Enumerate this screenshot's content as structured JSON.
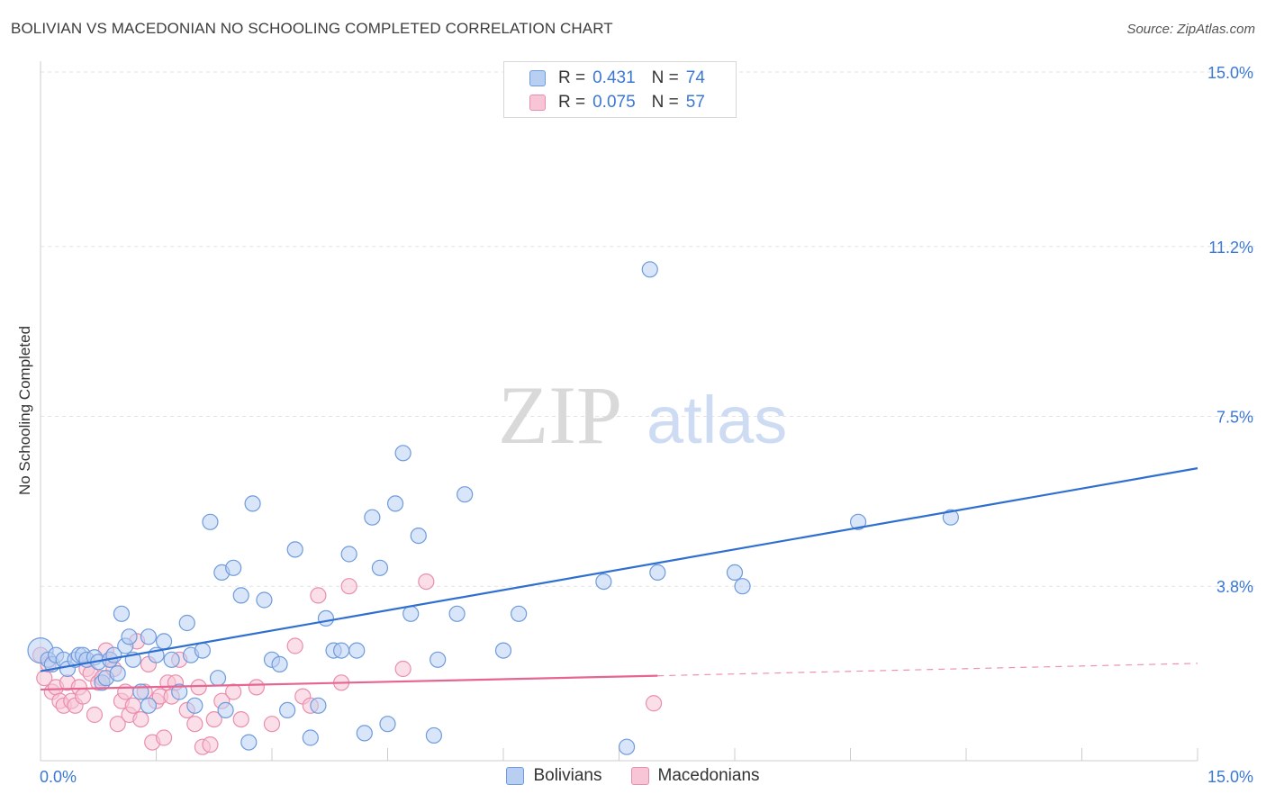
{
  "header": {
    "title": "BOLIVIAN VS MACEDONIAN NO SCHOOLING COMPLETED CORRELATION CHART",
    "source": "Source: ZipAtlas.com"
  },
  "colors": {
    "blue_fill": "#b9cff2",
    "blue_stroke": "#6f9bdc",
    "blue_line": "#2f6fd0",
    "pink_fill": "#f7c5d5",
    "pink_stroke": "#ea8eae",
    "pink_line": "#e66592",
    "axis_text": "#3a78d4",
    "grid": "#e3e3e3"
  },
  "legend": {
    "rows": [
      {
        "r_label": "R =",
        "r_value": "0.431",
        "n_label": "N =",
        "n_value": "74"
      },
      {
        "r_label": "R =",
        "r_value": "0.075",
        "n_label": "N =",
        "n_value": "57"
      }
    ]
  },
  "watermark": {
    "zip": "ZIP",
    "atlas": "atlas"
  },
  "chart_data": {
    "type": "scatter",
    "title": "BOLIVIAN VS MACEDONIAN NO SCHOOLING COMPLETED CORRELATION CHART",
    "xlabel": "",
    "ylabel": "No Schooling Completed",
    "xlim": [
      0,
      15
    ],
    "ylim": [
      0,
      15
    ],
    "x_tick_labels": [
      "0.0%",
      "15.0%"
    ],
    "y_ticks": [
      3.8,
      7.5,
      11.2,
      15.0
    ],
    "y_tick_labels": [
      "3.8%",
      "7.5%",
      "11.2%",
      "15.0%"
    ],
    "legend_entries": [
      "Bolivians",
      "Macedonians"
    ],
    "series": [
      {
        "name": "Bolivians",
        "R": 0.431,
        "N": 74,
        "trend": {
          "x0": 0.0,
          "y0": 1.95,
          "x1": 15.0,
          "y1": 6.37
        },
        "points": [
          [
            0.0,
            2.4
          ],
          [
            0.1,
            2.2
          ],
          [
            0.15,
            2.1
          ],
          [
            0.2,
            2.3
          ],
          [
            0.3,
            2.2
          ],
          [
            0.35,
            2.0
          ],
          [
            0.45,
            2.2
          ],
          [
            0.5,
            2.3
          ],
          [
            0.55,
            2.3
          ],
          [
            0.6,
            2.2
          ],
          [
            0.7,
            2.25
          ],
          [
            0.75,
            2.15
          ],
          [
            0.8,
            1.7
          ],
          [
            0.85,
            1.8
          ],
          [
            0.9,
            2.2
          ],
          [
            0.95,
            2.3
          ],
          [
            1.0,
            1.9
          ],
          [
            1.05,
            3.2
          ],
          [
            1.1,
            2.5
          ],
          [
            1.15,
            2.7
          ],
          [
            1.2,
            2.2
          ],
          [
            1.3,
            1.5
          ],
          [
            1.4,
            2.7
          ],
          [
            1.4,
            1.2
          ],
          [
            1.5,
            2.3
          ],
          [
            1.6,
            2.6
          ],
          [
            1.7,
            2.2
          ],
          [
            1.8,
            1.5
          ],
          [
            1.9,
            3.0
          ],
          [
            1.95,
            2.3
          ],
          [
            2.0,
            1.2
          ],
          [
            2.1,
            2.4
          ],
          [
            2.2,
            5.2
          ],
          [
            2.3,
            1.8
          ],
          [
            2.35,
            4.1
          ],
          [
            2.4,
            1.1
          ],
          [
            2.5,
            4.2
          ],
          [
            2.6,
            3.6
          ],
          [
            2.7,
            0.4
          ],
          [
            2.75,
            5.6
          ],
          [
            2.9,
            3.5
          ],
          [
            3.0,
            2.2
          ],
          [
            3.1,
            2.1
          ],
          [
            3.2,
            1.1
          ],
          [
            3.3,
            4.6
          ],
          [
            3.5,
            0.5
          ],
          [
            3.6,
            1.2
          ],
          [
            3.7,
            3.1
          ],
          [
            3.8,
            2.4
          ],
          [
            3.9,
            2.4
          ],
          [
            4.0,
            4.5
          ],
          [
            4.1,
            2.4
          ],
          [
            4.2,
            0.6
          ],
          [
            4.3,
            5.3
          ],
          [
            4.4,
            4.2
          ],
          [
            4.5,
            0.8
          ],
          [
            4.6,
            5.6
          ],
          [
            4.7,
            6.7
          ],
          [
            4.8,
            3.2
          ],
          [
            4.9,
            4.9
          ],
          [
            5.1,
            0.55
          ],
          [
            5.15,
            2.2
          ],
          [
            5.4,
            3.2
          ],
          [
            5.5,
            5.8
          ],
          [
            6.0,
            2.4
          ],
          [
            6.2,
            3.2
          ],
          [
            7.3,
            3.9
          ],
          [
            7.6,
            0.3
          ],
          [
            7.9,
            10.7
          ],
          [
            8.0,
            4.1
          ],
          [
            9.0,
            4.1
          ],
          [
            9.1,
            3.8
          ],
          [
            10.6,
            5.2
          ],
          [
            11.8,
            5.3
          ]
        ]
      },
      {
        "name": "Macedonians",
        "R": 0.075,
        "N": 57,
        "trend": {
          "x0": 0.0,
          "y0": 1.55,
          "x1": 8.0,
          "y1": 1.85
        },
        "trend_dashed": {
          "x0": 8.0,
          "y0": 1.85,
          "x1": 15.0,
          "y1": 2.12
        },
        "points": [
          [
            0.0,
            2.3
          ],
          [
            0.05,
            1.8
          ],
          [
            0.1,
            2.1
          ],
          [
            0.15,
            1.5
          ],
          [
            0.2,
            1.6
          ],
          [
            0.25,
            1.3
          ],
          [
            0.3,
            1.2
          ],
          [
            0.35,
            1.7
          ],
          [
            0.4,
            1.3
          ],
          [
            0.45,
            1.2
          ],
          [
            0.5,
            1.6
          ],
          [
            0.55,
            1.4
          ],
          [
            0.6,
            2.0
          ],
          [
            0.65,
            1.9
          ],
          [
            0.7,
            1.0
          ],
          [
            0.75,
            1.7
          ],
          [
            0.8,
            1.8
          ],
          [
            0.85,
            2.4
          ],
          [
            0.9,
            2.2
          ],
          [
            0.95,
            2.0
          ],
          [
            1.0,
            0.8
          ],
          [
            1.05,
            1.3
          ],
          [
            1.1,
            1.5
          ],
          [
            1.15,
            1.0
          ],
          [
            1.2,
            1.2
          ],
          [
            1.25,
            2.6
          ],
          [
            1.3,
            0.9
          ],
          [
            1.35,
            1.5
          ],
          [
            1.4,
            2.1
          ],
          [
            1.45,
            0.4
          ],
          [
            1.5,
            1.3
          ],
          [
            1.55,
            1.4
          ],
          [
            1.6,
            0.5
          ],
          [
            1.65,
            1.7
          ],
          [
            1.7,
            1.4
          ],
          [
            1.75,
            1.7
          ],
          [
            1.8,
            2.2
          ],
          [
            1.9,
            1.1
          ],
          [
            2.0,
            0.8
          ],
          [
            2.05,
            1.6
          ],
          [
            2.1,
            0.3
          ],
          [
            2.2,
            0.35
          ],
          [
            2.25,
            0.9
          ],
          [
            2.35,
            1.3
          ],
          [
            2.5,
            1.5
          ],
          [
            2.6,
            0.9
          ],
          [
            2.8,
            1.6
          ],
          [
            3.0,
            0.8
          ],
          [
            3.3,
            2.5
          ],
          [
            3.4,
            1.4
          ],
          [
            3.5,
            1.2
          ],
          [
            3.6,
            3.6
          ],
          [
            3.9,
            1.7
          ],
          [
            4.0,
            3.8
          ],
          [
            4.7,
            2.0
          ],
          [
            5.0,
            3.9
          ],
          [
            7.95,
            1.25
          ]
        ]
      }
    ]
  }
}
